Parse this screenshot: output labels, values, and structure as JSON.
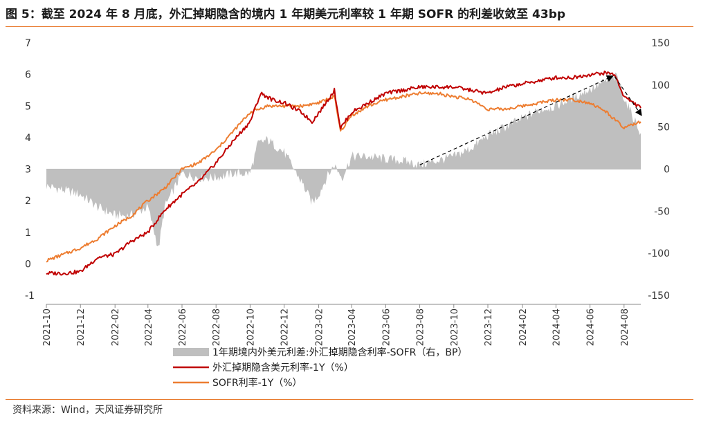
{
  "header": {
    "title": "图 5：截至 2024 年 8 月底，外汇掉期隐含的境内 1 年期美元利率较 1 年期 SOFR 的利差收敛至 43bp"
  },
  "footer": {
    "source": "资料来源：Wind，天风证券研究所"
  },
  "colors": {
    "accent": "#e8792b",
    "spread": "#bfbfbf",
    "fx": "#c00000",
    "sofr": "#ed7d31"
  },
  "chart_data": {
    "type": "line",
    "x_ticks": [
      "2021-10",
      "2021-12",
      "2022-02",
      "2022-04",
      "2022-06",
      "2022-08",
      "2022-10",
      "2022-12",
      "2023-02",
      "2023-04",
      "2023-06",
      "2023-08",
      "2023-10",
      "2023-12",
      "2024-02",
      "2024-04",
      "2024-06",
      "2024-08"
    ],
    "y_left": {
      "ticks": [
        "7",
        "6",
        "5",
        "4",
        "3",
        "2",
        "1",
        "0",
        "-1"
      ],
      "range": [
        -1,
        7
      ],
      "unit": "%"
    },
    "y_right": {
      "ticks": [
        "150",
        "100",
        "50",
        "0",
        "-50",
        "-100",
        "-150"
      ],
      "range": [
        -150,
        150
      ],
      "unit": "BP"
    },
    "legend": [
      {
        "name": "1年期境内外美元利差:外汇掉期隐含利率-SOFR（右，BP）",
        "type": "area"
      },
      {
        "name": "外汇掉期隐含美元利率-1Y（%）",
        "type": "line"
      },
      {
        "name": "SOFR利率-1Y（%）",
        "type": "line"
      }
    ],
    "series": [
      {
        "name": "1年期境内外美元利差:外汇掉期隐含利率-SOFR（右，BP）",
        "axis": "right",
        "x": [
          "2021-10-01",
          "2021-11-01",
          "2021-12-01",
          "2022-01-01",
          "2022-02-01",
          "2022-03-01",
          "2022-04-01",
          "2022-04-20",
          "2022-05-01",
          "2022-06-01",
          "2022-07-01",
          "2022-08-01",
          "2022-09-01",
          "2022-10-01",
          "2022-10-15",
          "2022-11-01",
          "2022-12-01",
          "2023-01-01",
          "2023-01-20",
          "2023-02-01",
          "2023-02-15",
          "2023-03-01",
          "2023-03-15",
          "2023-04-01",
          "2023-05-01",
          "2023-06-01",
          "2023-07-01",
          "2023-08-01",
          "2023-09-01",
          "2023-10-01",
          "2023-11-01",
          "2023-12-01",
          "2024-01-01",
          "2024-02-01",
          "2024-03-01",
          "2024-04-01",
          "2024-05-01",
          "2024-06-01",
          "2024-07-01",
          "2024-07-20",
          "2024-08-01",
          "2024-08-31"
        ],
        "values": [
          -20,
          -25,
          -30,
          -45,
          -55,
          -55,
          -45,
          -95,
          -45,
          -5,
          -10,
          -10,
          -5,
          -5,
          30,
          35,
          20,
          -15,
          -40,
          -30,
          -10,
          5,
          -10,
          15,
          15,
          12,
          10,
          5,
          10,
          15,
          25,
          40,
          50,
          60,
          70,
          75,
          85,
          95,
          105,
          110,
          85,
          43
        ]
      },
      {
        "name": "外汇掉期隐含美元利率-1Y（%）",
        "axis": "left",
        "x": [
          "2021-10-01",
          "2021-11-01",
          "2021-12-01",
          "2022-01-01",
          "2022-02-01",
          "2022-03-01",
          "2022-04-01",
          "2022-05-01",
          "2022-06-01",
          "2022-07-01",
          "2022-08-01",
          "2022-09-01",
          "2022-10-01",
          "2022-10-20",
          "2022-11-10",
          "2022-12-01",
          "2023-01-01",
          "2023-01-20",
          "2023-02-10",
          "2023-03-01",
          "2023-03-12",
          "2023-04-01",
          "2023-05-01",
          "2023-06-01",
          "2023-07-01",
          "2023-08-01",
          "2023-09-01",
          "2023-10-01",
          "2023-11-01",
          "2023-12-01",
          "2024-01-01",
          "2024-02-01",
          "2024-03-01",
          "2024-04-01",
          "2024-05-01",
          "2024-06-01",
          "2024-07-01",
          "2024-07-15",
          "2024-08-01",
          "2024-08-31"
        ],
        "values": [
          -0.3,
          -0.3,
          -0.25,
          0.2,
          0.3,
          0.7,
          1.0,
          1.7,
          2.2,
          2.6,
          3.2,
          3.9,
          4.5,
          5.4,
          5.2,
          5.1,
          4.8,
          4.5,
          5.0,
          5.5,
          4.3,
          4.8,
          5.1,
          5.4,
          5.5,
          5.6,
          5.6,
          5.6,
          5.5,
          5.4,
          5.6,
          5.7,
          5.8,
          5.9,
          5.9,
          6.0,
          6.05,
          6.0,
          5.3,
          4.94
        ]
      },
      {
        "name": "SOFR利率-1Y（%）",
        "axis": "left",
        "x": [
          "2021-10-01",
          "2021-11-01",
          "2021-12-01",
          "2022-01-01",
          "2022-02-01",
          "2022-03-01",
          "2022-04-01",
          "2022-05-01",
          "2022-06-01",
          "2022-07-01",
          "2022-08-01",
          "2022-09-01",
          "2022-10-01",
          "2022-11-01",
          "2022-12-01",
          "2023-01-01",
          "2023-02-01",
          "2023-03-01",
          "2023-03-12",
          "2023-04-01",
          "2023-05-01",
          "2023-06-01",
          "2023-07-01",
          "2023-08-01",
          "2023-09-01",
          "2023-10-01",
          "2023-11-01",
          "2023-12-01",
          "2024-01-01",
          "2024-02-01",
          "2024-03-01",
          "2024-04-01",
          "2024-05-01",
          "2024-06-01",
          "2024-07-01",
          "2024-08-01",
          "2024-08-31"
        ],
        "values": [
          0.1,
          0.3,
          0.5,
          0.8,
          1.2,
          1.5,
          2.0,
          2.4,
          3.0,
          3.2,
          3.6,
          4.2,
          4.8,
          5.0,
          5.0,
          5.0,
          5.1,
          5.3,
          4.2,
          4.7,
          5.0,
          5.2,
          5.3,
          5.4,
          5.4,
          5.3,
          5.2,
          4.9,
          4.9,
          5.0,
          5.1,
          5.2,
          5.2,
          5.1,
          4.8,
          4.3,
          4.5
        ]
      }
    ],
    "annotations": [
      {
        "type": "dashed-arrow",
        "from": [
          "2023-08-01",
          5
        ],
        "to": [
          "2024-07-10",
          110
        ],
        "axis": "right"
      },
      {
        "type": "dashed-arrow",
        "from": [
          "2024-07-15",
          110
        ],
        "to": [
          "2024-08-31",
          65
        ],
        "axis": "right"
      }
    ]
  }
}
